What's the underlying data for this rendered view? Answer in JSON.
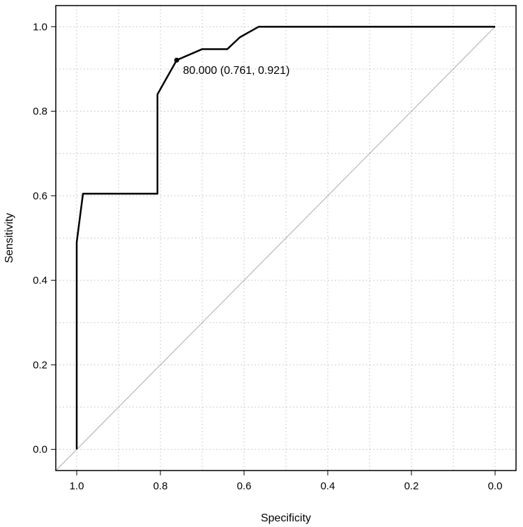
{
  "chart_data": {
    "type": "line",
    "title": "",
    "xlabel": "Specificity",
    "ylabel": "Sensitivity",
    "xlim": [
      1.05,
      -0.05
    ],
    "ylim": [
      -0.05,
      1.05
    ],
    "x_reversed": true,
    "grid": true,
    "grid_style": "dotted",
    "xticks": [
      1.0,
      0.8,
      0.6,
      0.4,
      0.2,
      0.0
    ],
    "xtick_labels": [
      "1.0",
      "0.8",
      "0.6",
      "0.4",
      "0.2",
      "0.0"
    ],
    "yticks": [
      0.0,
      0.2,
      0.4,
      0.6,
      0.8,
      1.0
    ],
    "ytick_labels": [
      "0.0",
      "0.2",
      "0.4",
      "0.6",
      "0.8",
      "1.0"
    ],
    "series": [
      {
        "color": "#000000",
        "points": [
          {
            "specificity": 1.0,
            "sensitivity": 0.0
          },
          {
            "specificity": 1.0,
            "sensitivity": 0.49
          },
          {
            "specificity": 0.985,
            "sensitivity": 0.605
          },
          {
            "specificity": 0.807,
            "sensitivity": 0.605
          },
          {
            "specificity": 0.807,
            "sensitivity": 0.84
          },
          {
            "specificity": 0.761,
            "sensitivity": 0.921
          },
          {
            "specificity": 0.7,
            "sensitivity": 0.947
          },
          {
            "specificity": 0.64,
            "sensitivity": 0.947
          },
          {
            "specificity": 0.61,
            "sensitivity": 0.975
          },
          {
            "specificity": 0.565,
            "sensitivity": 1.0
          },
          {
            "specificity": 0.0,
            "sensitivity": 1.0
          }
        ]
      }
    ],
    "reference_line": {
      "from": {
        "specificity": 1.05,
        "sensitivity": -0.05
      },
      "to": {
        "specificity": 0.0,
        "sensitivity": 1.0
      },
      "color": "#aaaaaa"
    },
    "annotations": [
      {
        "label": "80.000 (0.761, 0.921)",
        "specificity": 0.761,
        "sensitivity": 0.921
      }
    ]
  }
}
